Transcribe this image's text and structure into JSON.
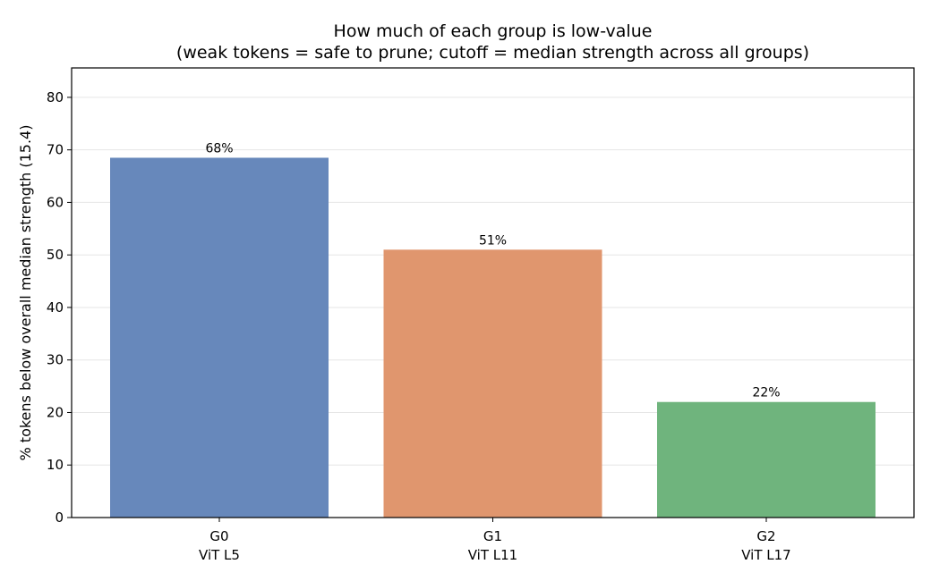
{
  "chart_data": {
    "type": "bar",
    "title_line1": "How much of each group is low-value",
    "title_line2": "(weak tokens = safe to prune; cutoff = median strength across all groups)",
    "ylabel": "% tokens below overall median strength (15.4)",
    "xlabel": "",
    "categories": [
      {
        "name": "G0",
        "sub": "ViT L5"
      },
      {
        "name": "G1",
        "sub": "ViT L11"
      },
      {
        "name": "G2",
        "sub": "ViT L17"
      }
    ],
    "values": [
      68.5,
      51.0,
      22.0
    ],
    "data_labels": [
      "68%",
      "51%",
      "22%"
    ],
    "colors": [
      "#6788bb",
      "#e0966e",
      "#6fb47d"
    ],
    "ylim": [
      0,
      85.6
    ],
    "yticks": [
      0,
      10,
      20,
      30,
      40,
      50,
      60,
      70,
      80
    ],
    "grid": true
  }
}
